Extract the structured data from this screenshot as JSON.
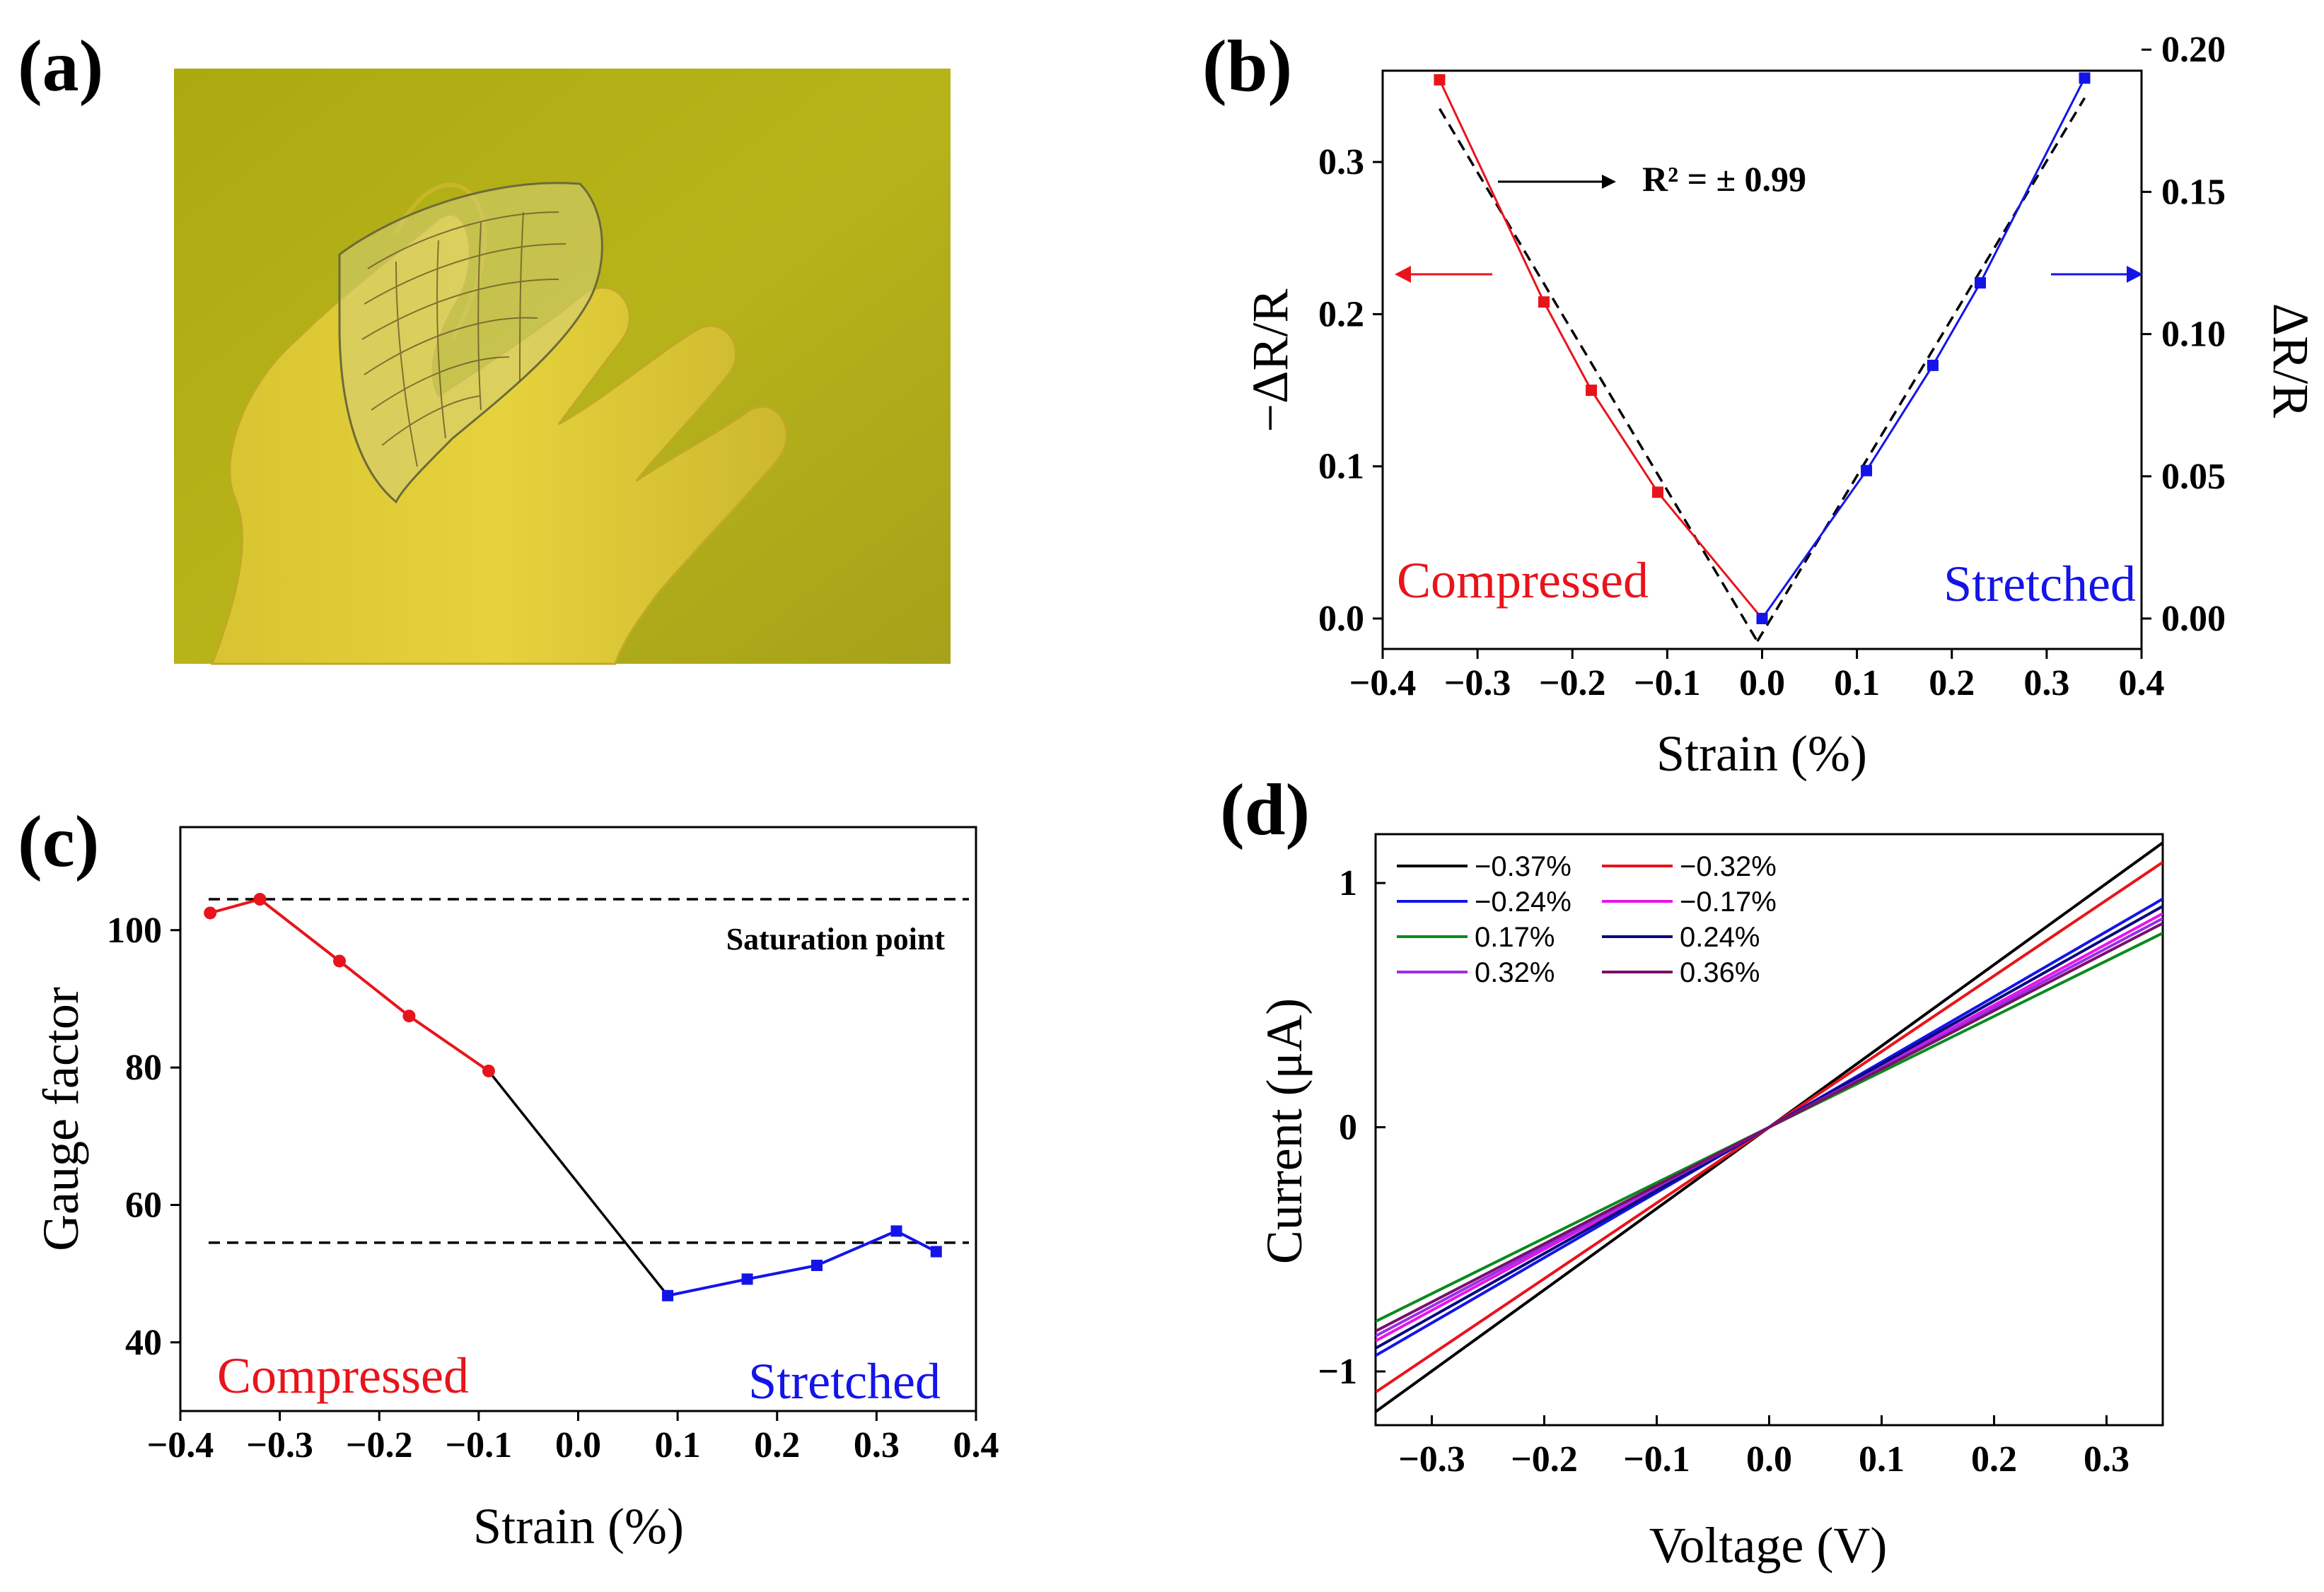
{
  "panels": {
    "a": {
      "label": "(a)",
      "photo_description_icon": "gloved-hand-holding-flexible-sensor-film-photo"
    },
    "b": {
      "label": "(b)"
    },
    "c": {
      "label": "(c)"
    },
    "d": {
      "label": "(d)"
    }
  },
  "chart_data": [
    {
      "id": "b",
      "type": "line",
      "xlabel": "Strain (%)",
      "ylabel_left": "−ΔR/R",
      "ylabel_right": "ΔR/R",
      "xlim": [
        -0.4,
        0.4
      ],
      "ylim_left": [
        -0.02,
        0.36
      ],
      "ylim_right": [
        -0.0107,
        0.1926
      ],
      "xticks": [
        -0.4,
        -0.3,
        -0.2,
        -0.1,
        0.0,
        0.1,
        0.2,
        0.3,
        0.4
      ],
      "xtick_labels": [
        "−0.4",
        "−0.3",
        "−0.2",
        "−0.1",
        "0.0",
        "0.1",
        "0.2",
        "0.3",
        "0.4"
      ],
      "yticks_left": [
        0.0,
        0.1,
        0.2,
        0.3
      ],
      "ytick_labels_left": [
        "0.0",
        "0.1",
        "0.2",
        "0.3"
      ],
      "yticks_right": [
        0.0,
        0.05,
        0.1,
        0.15,
        0.2
      ],
      "ytick_labels_right": [
        "0.00",
        "0.05",
        "0.10",
        "0.15",
        "0.20"
      ],
      "series": [
        {
          "name": "Compressed",
          "axis": "left",
          "color": "#e8141c",
          "x": [
            -0.34,
            -0.23,
            -0.18,
            -0.11,
            0.0
          ],
          "y": [
            0.354,
            0.208,
            0.15,
            0.083,
            0.0
          ]
        },
        {
          "name": "Stretched",
          "axis": "right",
          "color": "#1414e8",
          "x": [
            0.0,
            0.11,
            0.18,
            0.23,
            0.34
          ],
          "y": [
            0.0,
            0.052,
            0.089,
            0.118,
            0.19
          ]
        }
      ],
      "fit_lines": [
        {
          "axis": "left",
          "x": [
            -0.34,
            -0.005
          ],
          "y": [
            0.335,
            -0.015
          ]
        },
        {
          "axis": "right",
          "x": [
            -0.005,
            0.34
          ],
          "y": [
            -0.008,
            0.183
          ]
        }
      ],
      "annotations": {
        "r2": "R² = ± 0.99",
        "left_text": "Compressed",
        "right_text": "Stretched"
      }
    },
    {
      "id": "c",
      "type": "line",
      "xlabel": "Strain (%)",
      "ylabel": "Gauge factor",
      "xlim": [
        -0.4,
        0.4
      ],
      "ylim": [
        30,
        115
      ],
      "xticks": [
        -0.4,
        -0.3,
        -0.2,
        -0.1,
        0.0,
        0.1,
        0.2,
        0.3,
        0.4
      ],
      "xtick_labels": [
        "−0.4",
        "−0.3",
        "−0.2",
        "−0.1",
        "0.0",
        "0.1",
        "0.2",
        "0.3",
        "0.4"
      ],
      "yticks": [
        40,
        60,
        80,
        100
      ],
      "ytick_labels": [
        "40",
        "60",
        "80",
        "100"
      ],
      "series": [
        {
          "name": "Compressed",
          "color": "#e8141c",
          "x": [
            -0.37,
            -0.32,
            -0.24,
            -0.17,
            -0.09
          ],
          "y": [
            102.5,
            104.5,
            95.5,
            87.5,
            79.5
          ]
        },
        {
          "name": "Stretched",
          "color": "#1414e8",
          "x": [
            0.09,
            0.17,
            0.24,
            0.32,
            0.36
          ],
          "y": [
            46.8,
            49.2,
            51.2,
            56.2,
            53.2
          ]
        }
      ],
      "connector": {
        "x": [
          -0.09,
          0.09
        ],
        "y": [
          79.5,
          46.8
        ],
        "color": "#000000"
      },
      "reference_lines": [
        {
          "y": 104.5,
          "label": "Saturation point"
        },
        {
          "y": 54.5
        }
      ],
      "annotations": {
        "left_text": "Compressed",
        "right_text": "Stretched"
      }
    },
    {
      "id": "d",
      "type": "line",
      "xlabel": "Voltage (V)",
      "ylabel": "Current (μA)",
      "xlim": [
        -0.35,
        0.35
      ],
      "ylim": [
        -1.22,
        1.2
      ],
      "xticks": [
        -0.3,
        -0.2,
        -0.1,
        0.0,
        0.1,
        0.2,
        0.3
      ],
      "xtick_labels": [
        "−0.3",
        "−0.2",
        "−0.1",
        "0.0",
        "0.1",
        "0.2",
        "0.3"
      ],
      "yticks": [
        -1,
        0,
        1
      ],
      "ytick_labels": [
        "−1",
        "0",
        "1"
      ],
      "series": [
        {
          "name": "−0.37%",
          "color": "#000000",
          "x": [
            -0.35,
            0.35
          ],
          "y": [
            -1.165,
            1.165
          ]
        },
        {
          "name": "−0.32%",
          "color": "#e8141c",
          "x": [
            -0.35,
            0.35
          ],
          "y": [
            -1.085,
            1.085
          ]
        },
        {
          "name": "−0.24%",
          "color": "#1414e8",
          "x": [
            -0.35,
            0.35
          ],
          "y": [
            -0.935,
            0.935
          ]
        },
        {
          "name": "−0.17%",
          "color": "#e814e8",
          "x": [
            -0.35,
            0.35
          ],
          "y": [
            -0.875,
            0.875
          ]
        },
        {
          "name": "0.17%",
          "color": "#0a8a1e",
          "x": [
            -0.35,
            0.35
          ],
          "y": [
            -0.795,
            0.795
          ]
        },
        {
          "name": "0.24%",
          "color": "#0a0a80",
          "x": [
            -0.35,
            0.35
          ],
          "y": [
            -0.905,
            0.905
          ]
        },
        {
          "name": "0.32%",
          "color": "#9a2ee8",
          "x": [
            -0.35,
            0.35
          ],
          "y": [
            -0.855,
            0.855
          ]
        },
        {
          "name": "0.36%",
          "color": "#7a0f6a",
          "x": [
            -0.35,
            0.35
          ],
          "y": [
            -0.835,
            0.835
          ]
        }
      ],
      "legend": "top-left"
    }
  ]
}
